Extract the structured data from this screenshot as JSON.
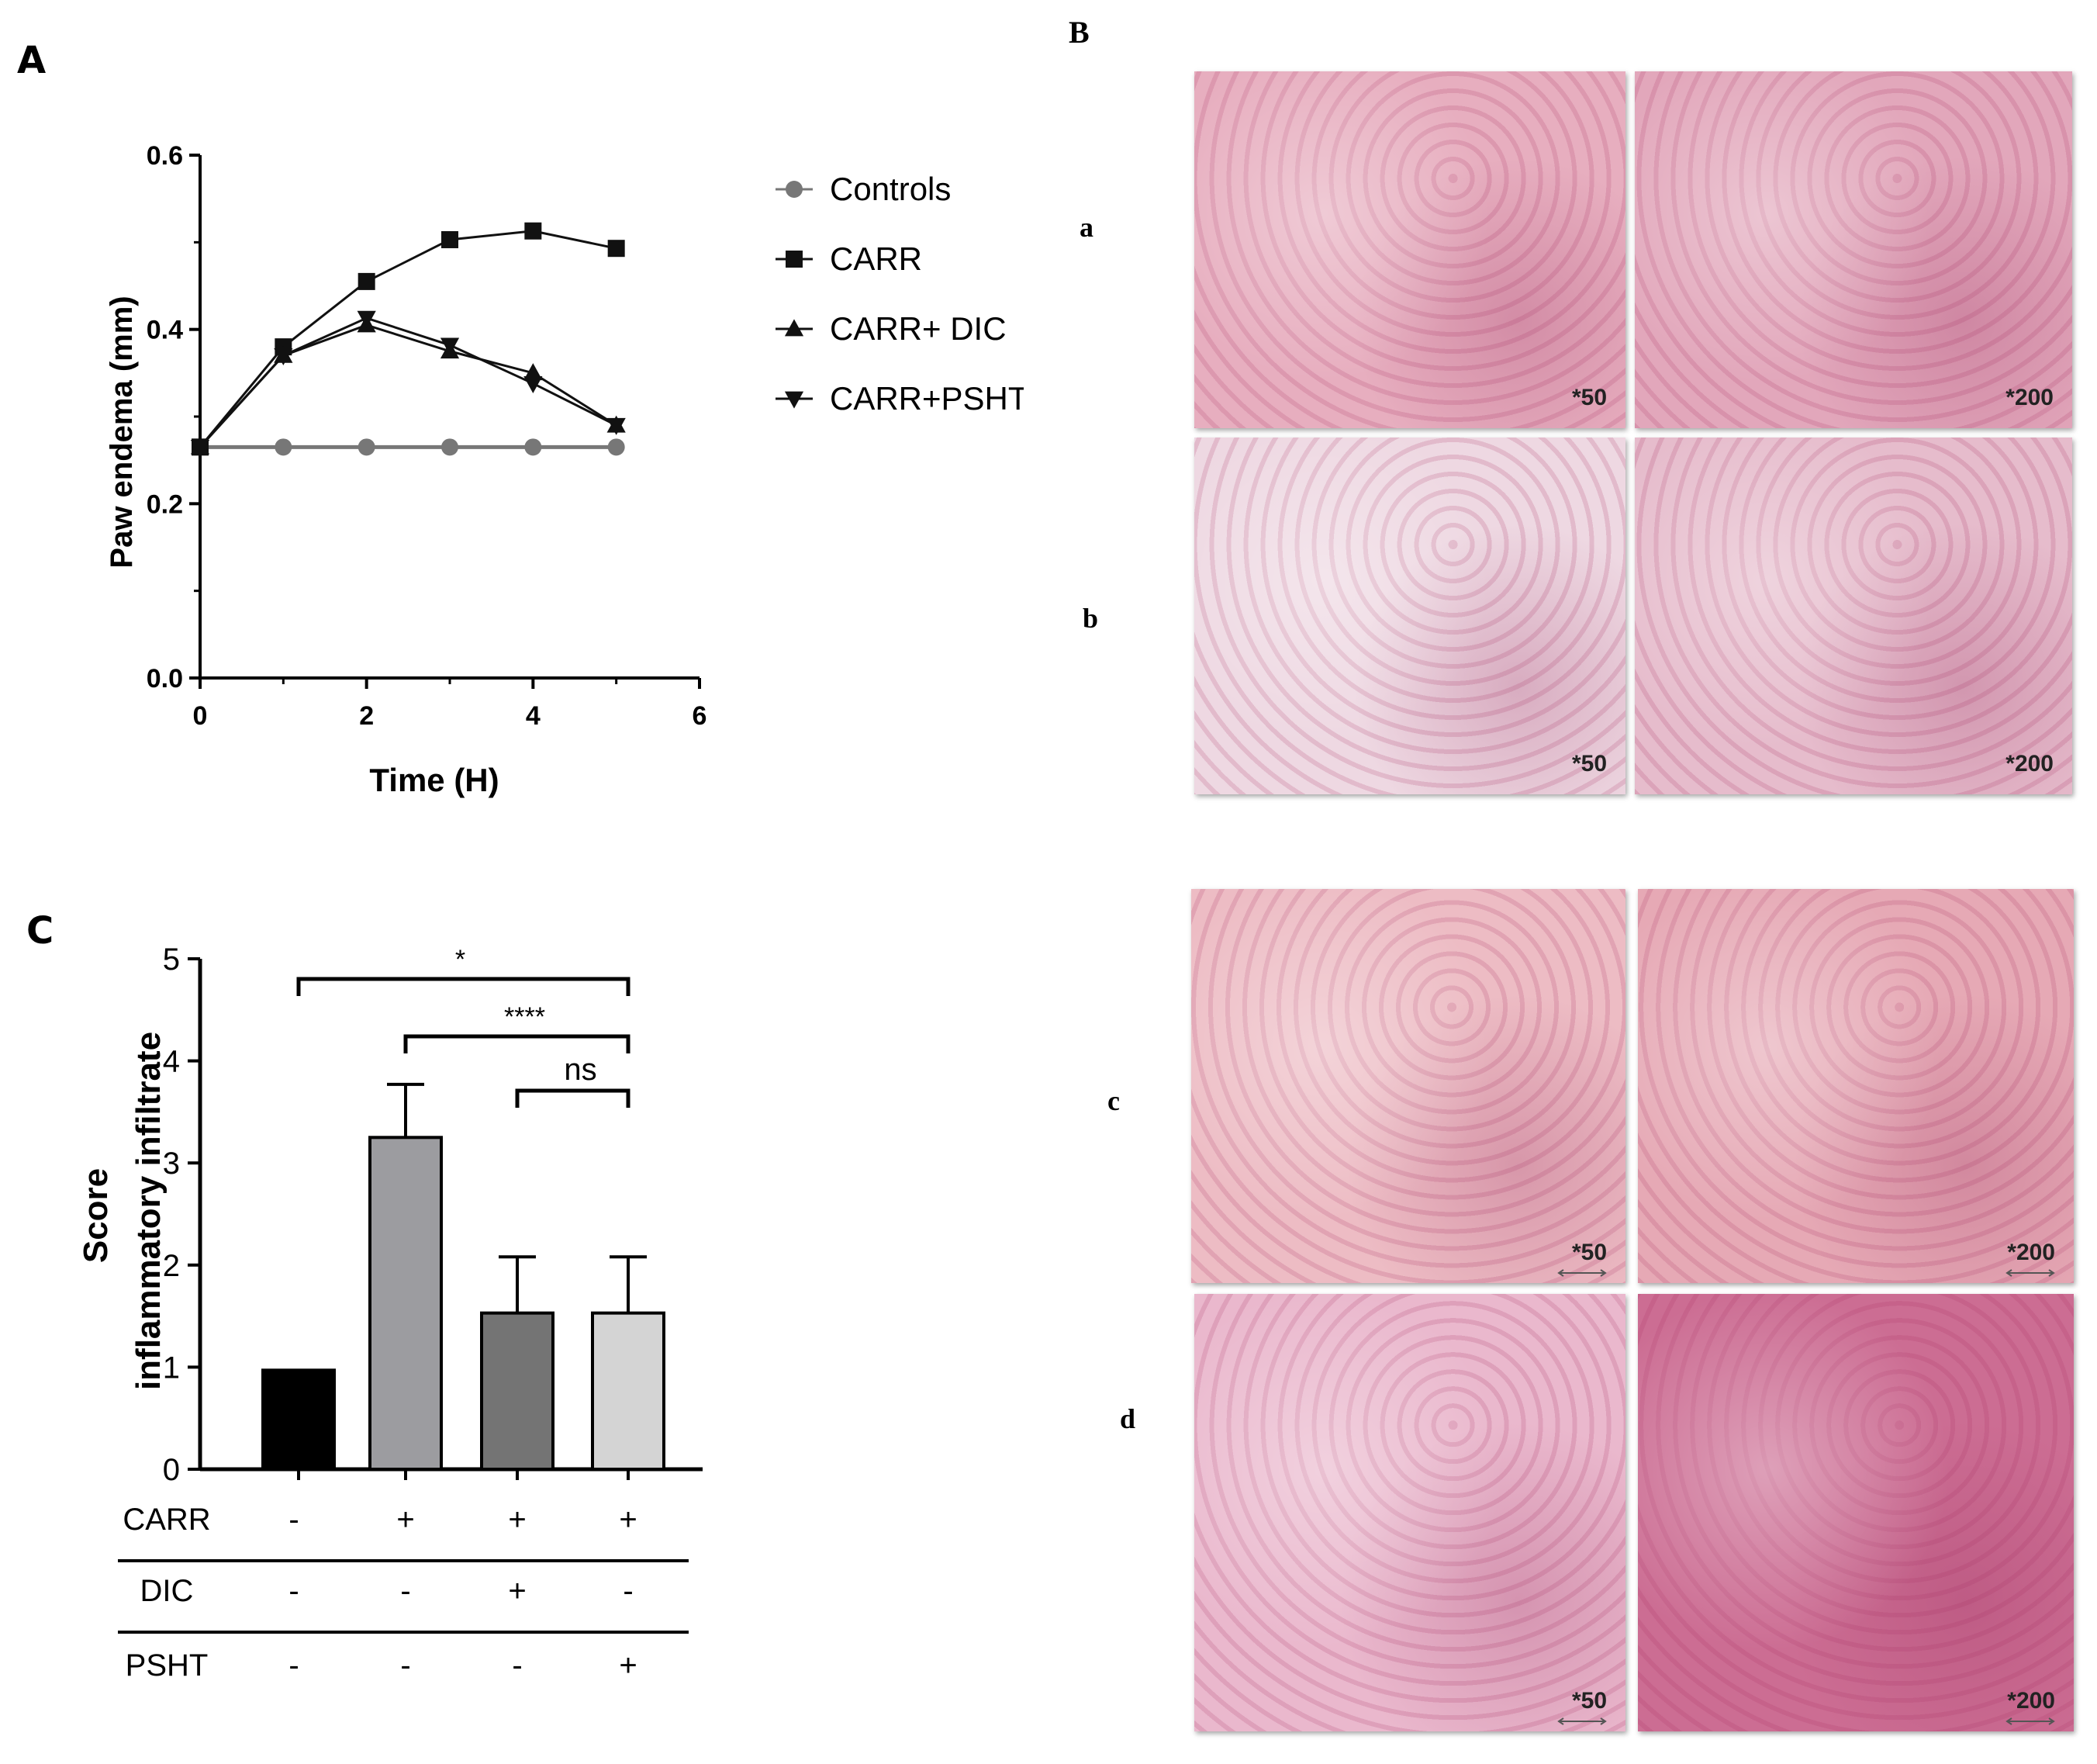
{
  "panels": {
    "A": {
      "label": "A"
    },
    "B": {
      "label": "B",
      "rows": [
        "a",
        "b",
        "c",
        "d"
      ]
    },
    "C": {
      "label": "C"
    }
  },
  "micrographs": [
    {
      "row": "a",
      "mag": "*50",
      "tone": "#e7aebf",
      "scalebar": false
    },
    {
      "row": "a",
      "mag": "*200",
      "tone": "#e2a7bb",
      "scalebar": false
    },
    {
      "row": "b",
      "mag": "*50",
      "tone": "#eed8e2",
      "scalebar": false
    },
    {
      "row": "b",
      "mag": "*200",
      "tone": "#e6bccc",
      "scalebar": false
    },
    {
      "row": "c",
      "mag": "*50",
      "tone": "#edbcc4",
      "scalebar": true
    },
    {
      "row": "c",
      "mag": "*200",
      "tone": "#e6a9b5",
      "scalebar": true
    },
    {
      "row": "d",
      "mag": "*50",
      "tone": "#eab8cd",
      "scalebar": true
    },
    {
      "row": "d",
      "mag": "*200",
      "tone": "#cc6d93",
      "scalebar": true
    }
  ],
  "chart_data": [
    {
      "panel": "A",
      "type": "line",
      "xlabel": "Time (H)",
      "ylabel": "Paw endema (mm)",
      "xlim": [
        0,
        6
      ],
      "ylim": [
        0.0,
        0.6
      ],
      "xticks": [
        "0",
        "2",
        "4",
        "6"
      ],
      "yticks": [
        "0.0",
        "0.2",
        "0.4",
        "0.6"
      ],
      "x": [
        0,
        1,
        2,
        3,
        4,
        5
      ],
      "legend_position": "right",
      "series": [
        {
          "name": "Controls",
          "marker": "circle",
          "color": "#777777",
          "values": [
            0.265,
            0.265,
            0.265,
            0.265,
            0.265,
            0.265
          ]
        },
        {
          "name": "CARR",
          "marker": "square",
          "color": "#111111",
          "values": [
            0.265,
            0.38,
            0.455,
            0.503,
            0.513,
            0.493
          ]
        },
        {
          "name": "CARR+ DIC",
          "marker": "triangle-up",
          "color": "#111111",
          "values": [
            0.265,
            0.37,
            0.405,
            0.375,
            0.35,
            0.29
          ]
        },
        {
          "name": "CARR+PSHT",
          "marker": "triangle-down",
          "color": "#111111",
          "values": [
            0.265,
            0.37,
            0.413,
            0.382,
            0.338,
            0.29
          ]
        }
      ]
    },
    {
      "panel": "C",
      "type": "bar",
      "ylabel_line1": "Score",
      "ylabel_line2": "inflammatory infiltrate",
      "ylim": [
        0,
        5
      ],
      "yticks": [
        "0",
        "1",
        "2",
        "3",
        "4",
        "5"
      ],
      "bars": [
        {
          "value": 0.97,
          "error": 0,
          "fill": "#000000"
        },
        {
          "value": 3.25,
          "error": 0.52,
          "fill": "#9c9ca0"
        },
        {
          "value": 1.53,
          "error": 0.55,
          "fill": "#747474"
        },
        {
          "value": 1.53,
          "error": 0.55,
          "fill": "#d4d4d4"
        }
      ],
      "treatment_table": [
        {
          "label": "CARR",
          "values": [
            "-",
            "+",
            "+",
            "+"
          ]
        },
        {
          "label": "DIC",
          "values": [
            "-",
            "-",
            "+",
            "-"
          ]
        },
        {
          "label": "PSHT",
          "values": [
            "-",
            "-",
            "-",
            "+"
          ]
        }
      ],
      "significance": [
        {
          "from": 0,
          "to": 3,
          "label": "*"
        },
        {
          "from": 1,
          "to": 3,
          "label": "****"
        },
        {
          "from": 2,
          "to": 3,
          "label": "ns"
        }
      ]
    }
  ]
}
